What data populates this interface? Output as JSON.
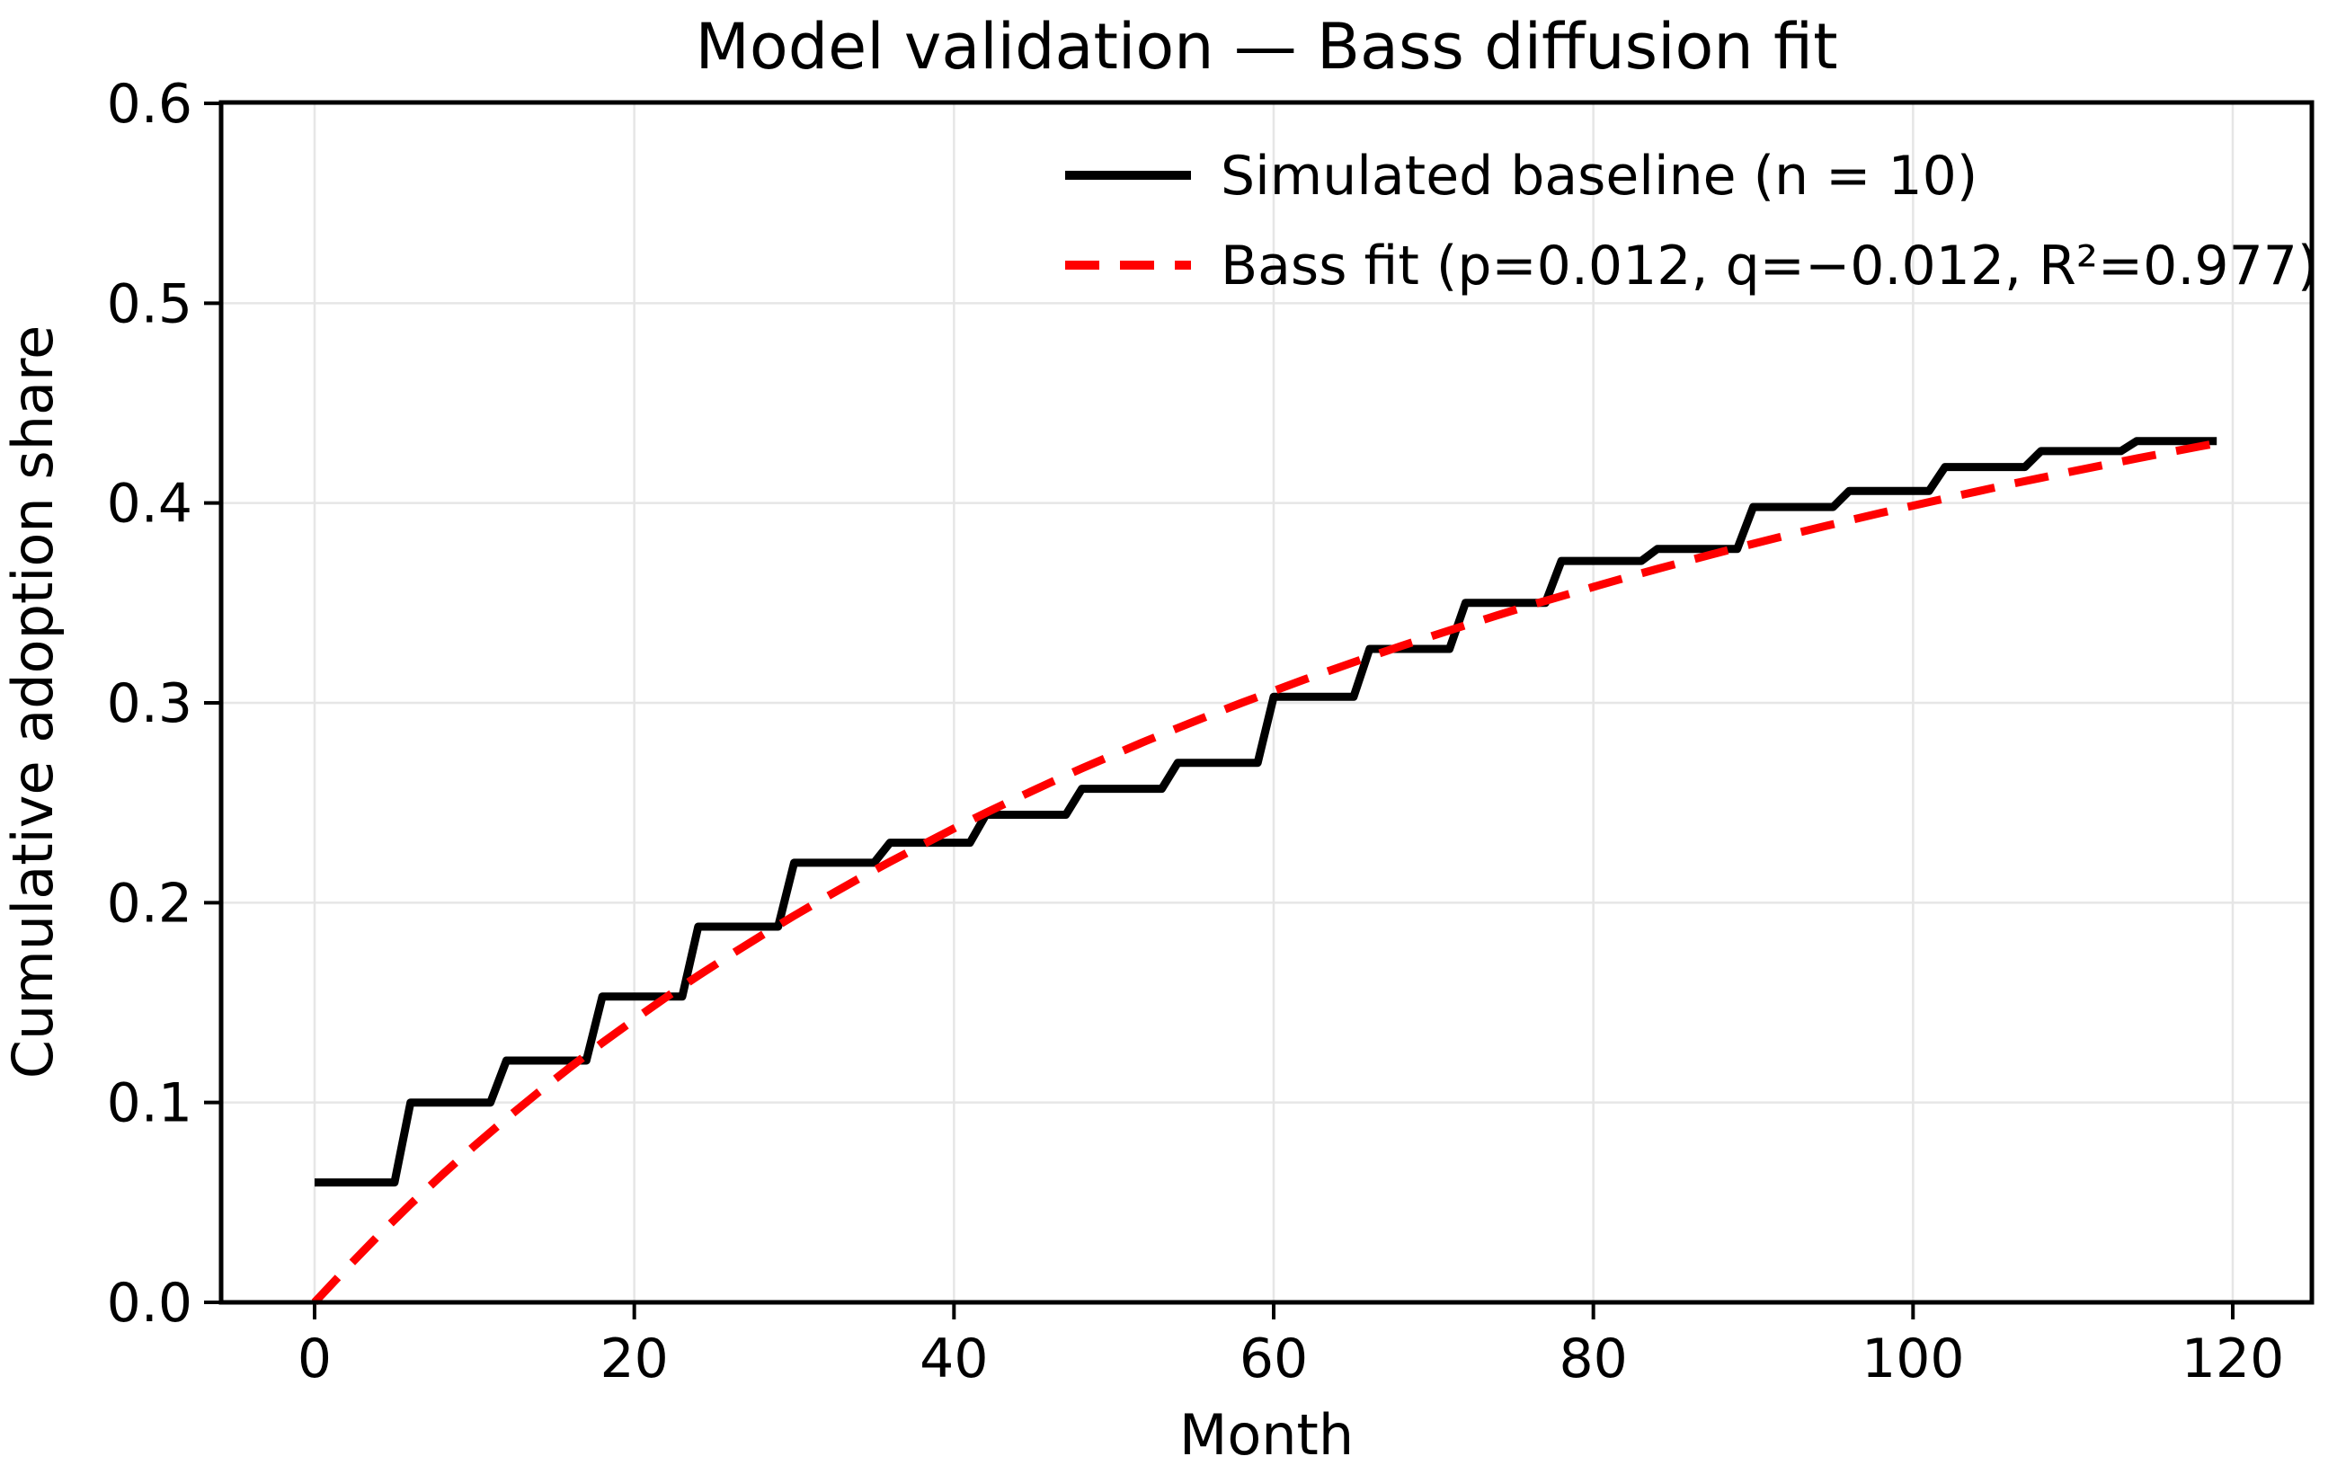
{
  "title": "Model validation — Bass diffusion fit",
  "axes": {
    "x_label": "Month",
    "y_label": "Cumulative adoption share",
    "x_tick_labels": [
      "0",
      "20",
      "40",
      "60",
      "80",
      "100",
      "120"
    ],
    "y_tick_labels": [
      "0.0",
      "0.1",
      "0.2",
      "0.3",
      "0.4",
      "0.5",
      "0.6"
    ]
  },
  "legend": {
    "position": "upper right",
    "items": [
      {
        "label": "Simulated baseline (n = 10)",
        "color": "#000000",
        "linestyle": "solid"
      },
      {
        "label": "Bass fit (p=0.012, q=−0.012, R²=0.977)",
        "color": "#ff0000",
        "linestyle": "dashed"
      }
    ]
  },
  "colors": {
    "baseline_line": "#000000",
    "fit_line": "#ff0000",
    "grid": "#e6e6e6",
    "spines": "#000000",
    "text": "#000000",
    "background": "#ffffff"
  },
  "chart_data": {
    "type": "line",
    "title": "Model validation — Bass diffusion fit",
    "xlabel": "Month",
    "ylabel": "Cumulative adoption share",
    "xlim": [
      -6,
      125
    ],
    "ylim": [
      0,
      0.6
    ],
    "x_ticks": [
      0,
      20,
      40,
      60,
      80,
      100,
      120
    ],
    "y_ticks": [
      0,
      0.1,
      0.2,
      0.3,
      0.4,
      0.5,
      0.6
    ],
    "grid": true,
    "legend_position": "upper right",
    "series": [
      {
        "name": "Simulated baseline (n = 10)",
        "type": "step",
        "color": "#000000",
        "linestyle": "solid",
        "linewidth": 9,
        "step_interval_months": 6,
        "x_start": 0,
        "x_end": 119,
        "plateau_values": [
          0.06,
          0.1,
          0.121,
          0.153,
          0.188,
          0.22,
          0.23,
          0.244,
          0.257,
          0.27,
          0.303,
          0.327,
          0.35,
          0.371,
          0.377,
          0.398,
          0.406,
          0.418,
          0.426,
          0.431
        ]
      },
      {
        "name": "Bass fit (p=0.012, q=−0.012, R²=0.977)",
        "type": "line",
        "color": "#ff0000",
        "linestyle": "dashed",
        "linewidth": 9,
        "fit_params": {
          "p": 0.012,
          "q": -0.012,
          "r_squared": 0.977
        },
        "x": [
          0,
          2,
          4,
          6,
          8,
          10,
          12,
          14,
          16,
          18,
          20,
          22,
          24,
          26,
          28,
          30,
          32,
          34,
          36,
          38,
          40,
          42,
          44,
          46,
          48,
          50,
          52,
          54,
          56,
          58,
          60,
          62,
          64,
          66,
          68,
          70,
          72,
          74,
          76,
          78,
          80,
          82,
          84,
          86,
          88,
          90,
          92,
          94,
          96,
          98,
          100,
          102,
          104,
          106,
          108,
          110,
          112,
          114,
          116,
          118,
          119
        ],
        "y": [
          0,
          0.0171,
          0.0335,
          0.0491,
          0.064,
          0.0783,
          0.092,
          0.1051,
          0.1177,
          0.1299,
          0.1415,
          0.1527,
          0.1635,
          0.1738,
          0.1838,
          0.1935,
          0.2028,
          0.2118,
          0.2205,
          0.2289,
          0.2371,
          0.245,
          0.2526,
          0.26,
          0.2672,
          0.2741,
          0.2809,
          0.2874,
          0.2938,
          0.3,
          0.306,
          0.3119,
          0.3175,
          0.3231,
          0.3285,
          0.3337,
          0.3388,
          0.3438,
          0.3487,
          0.3534,
          0.358,
          0.3626,
          0.367,
          0.3713,
          0.3755,
          0.3796,
          0.3836,
          0.3875,
          0.3913,
          0.3951,
          0.3987,
          0.4023,
          0.4058,
          0.4093,
          0.4126,
          0.4159,
          0.4191,
          0.4223,
          0.4254,
          0.4284,
          0.4299
        ]
      }
    ]
  }
}
